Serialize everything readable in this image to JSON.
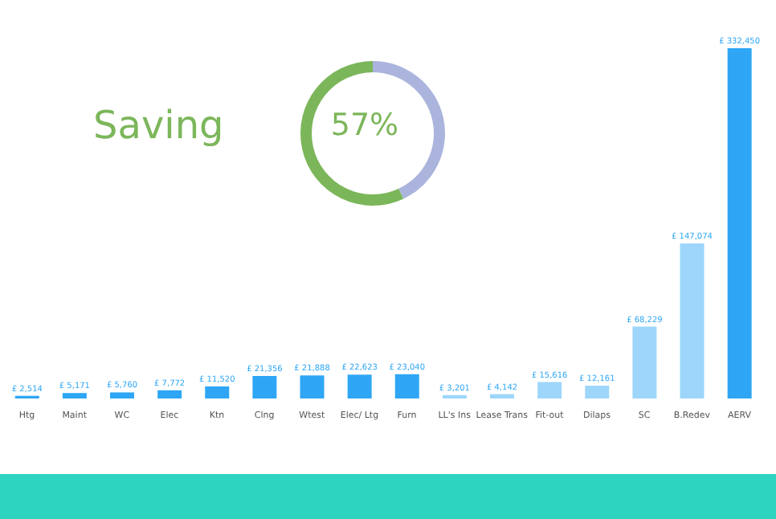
{
  "chart_data": [
    {
      "type": "bar",
      "categories": [
        "Htg",
        "Maint",
        "WC",
        "Elec",
        "Ktn",
        "Clng",
        "Wtest",
        "Elec/ Ltg",
        "Furn",
        "LL's Ins",
        "Lease Trans",
        "Fit-out",
        "Dilaps",
        "SC",
        "B.Redev",
        "AERV"
      ],
      "values": [
        2514,
        5171,
        5760,
        7772,
        11520,
        21356,
        21888,
        22623,
        23040,
        3201,
        4142,
        15616,
        12161,
        68229,
        147074,
        332450
      ],
      "colors": [
        "#2ea6f5",
        "#2ea6f5",
        "#2ea6f5",
        "#2ea6f5",
        "#2ea6f5",
        "#2ea6f5",
        "#2ea6f5",
        "#2ea6f5",
        "#2ea6f5",
        "#9dd6fa",
        "#9dd6fa",
        "#9dd6fa",
        "#9dd6fa",
        "#9dd6fa",
        "#9dd6fa",
        "#2ea6f5"
      ],
      "value_labels": [
        "£ 2,514",
        "£ 5,171",
        "£ 5,760",
        "£ 7,772",
        "£ 11,520",
        "£ 21,356",
        "£ 21,888",
        "£ 22,623",
        "£ 23,040",
        "£ 3,201",
        "£ 4,142",
        "£ 15,616",
        "£ 12,161",
        "£ 68,229",
        "£ 147,074",
        "£ 332,450"
      ],
      "relative": false
    },
    {
      "type": "donut",
      "categories": [
        "Saving",
        null
      ],
      "values": [
        57,
        43
      ],
      "colors": [
        "#7cb65a",
        "#aab4dc"
      ],
      "annotations": [
        "57%"
      ]
    }
  ]
}
